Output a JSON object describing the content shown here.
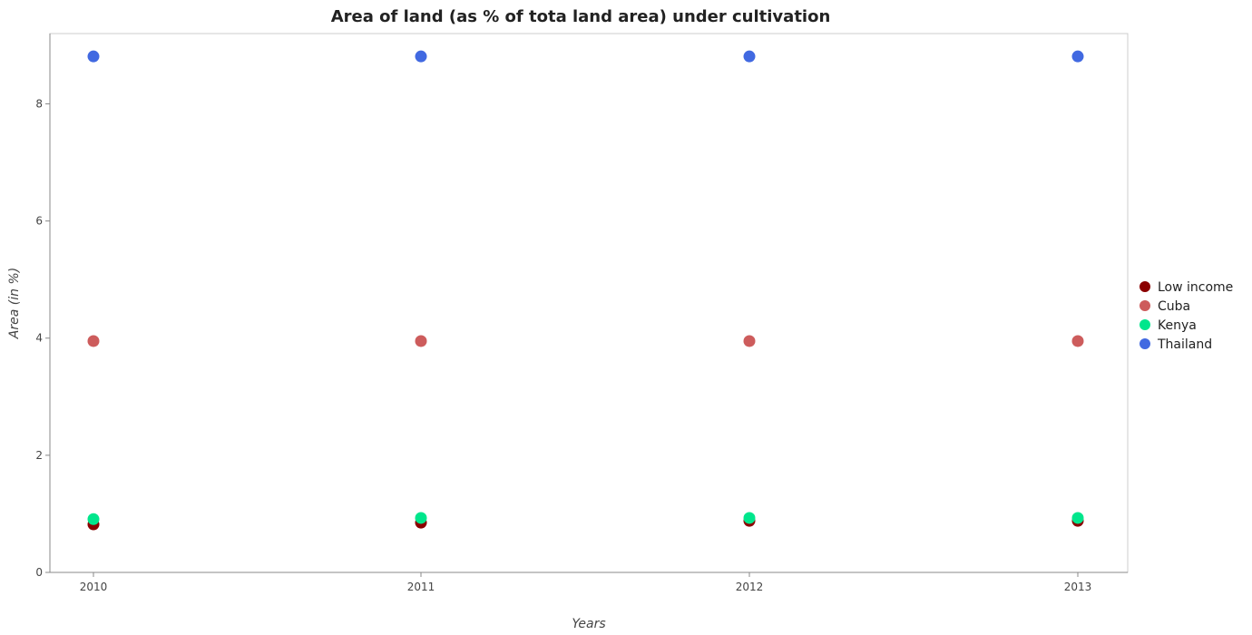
{
  "chart_data": {
    "type": "scatter",
    "title": "Area of land (as % of tota land area) under cultivation",
    "xlabel": "Years",
    "ylabel": "Area (in %)",
    "categories": [
      "2010",
      "2011",
      "2012",
      "2013"
    ],
    "ylim": [
      0,
      9.2
    ],
    "yticks": [
      "0",
      "2",
      "4",
      "6",
      "8"
    ],
    "grid": false,
    "legend_position": "right",
    "series": [
      {
        "name": "Low income",
        "color": "#8b0000",
        "values": [
          0.82,
          0.85,
          0.88,
          0.88
        ]
      },
      {
        "name": "Cuba",
        "color": "#cd5c5c",
        "values": [
          3.95,
          3.95,
          3.95,
          3.95
        ]
      },
      {
        "name": "Kenya",
        "color": "#00e68c",
        "values": [
          0.91,
          0.93,
          0.93,
          0.93
        ]
      },
      {
        "name": "Thailand",
        "color": "#4169e1",
        "values": [
          8.81,
          8.81,
          8.81,
          8.81
        ]
      }
    ]
  }
}
